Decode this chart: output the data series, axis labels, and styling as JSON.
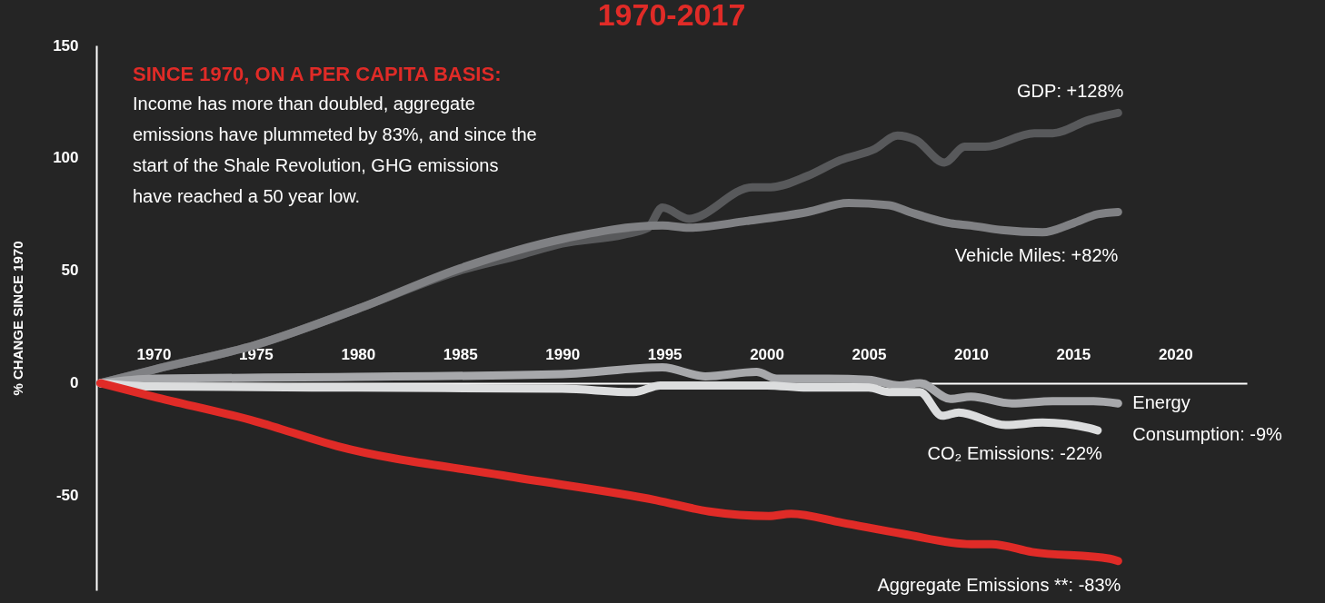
{
  "chart_data": {
    "type": "line",
    "title": "1970-2017",
    "ylabel": "% CHANGE SINCE 1970",
    "xlim": [
      1967.2,
      2023.5
    ],
    "xticks": [
      1970,
      1975,
      1980,
      1985,
      1990,
      1995,
      2000,
      2005,
      2010,
      2015,
      2020
    ],
    "ylim": [
      -92,
      150
    ],
    "yticks": [
      -50,
      0,
      50,
      100,
      150
    ],
    "series": [
      {
        "name": "GDP: +128%",
        "color": "#58595b",
        "x": [
          1967.4,
          1970,
          1975,
          1980,
          1985,
          1988,
          1990,
          1993,
          1994.2,
          1994.9,
          1996.2,
          1999.3,
          2000.2,
          2002,
          2003.6,
          2005.3,
          2006.4,
          2007.3,
          2008.7,
          2009.7,
          2010.7,
          2013.1,
          2014,
          2015.8,
          2017.2
        ],
        "values": [
          0,
          6,
          17,
          33,
          50,
          57,
          62,
          66,
          69,
          78,
          73,
          87,
          87,
          92,
          99,
          104,
          110,
          108,
          98,
          105,
          105,
          111,
          111,
          117,
          120
        ]
      },
      {
        "name": "Vehicle Miles: +82%",
        "color": "#808184",
        "x": [
          1967.4,
          1970,
          1975,
          1980,
          1985,
          1990,
          1994.9,
          1996.2,
          1999,
          2002,
          2004,
          2006,
          2007,
          2009,
          2010,
          2011.5,
          2013.5,
          2015,
          2016.2,
          2017.2
        ],
        "values": [
          0,
          6,
          17,
          33,
          51,
          64,
          70,
          69,
          72,
          76,
          80,
          79,
          76,
          71,
          70,
          68,
          67,
          71,
          75,
          76
        ]
      },
      {
        "name": "Energy Consumption: -9%",
        "color": "#a7a8ab",
        "x": [
          1967.4,
          1970,
          1979,
          1990,
          1994.9,
          1997,
          1999.5,
          2000.5,
          2003,
          2005,
          2006.5,
          2007.5,
          2009,
          2010,
          2012,
          2014,
          2016,
          2017.2
        ],
        "values": [
          0,
          2,
          2.7,
          4,
          7,
          3,
          5,
          2,
          2,
          1.5,
          -1,
          0,
          -7,
          -6,
          -9,
          -8,
          -8,
          -9
        ]
      },
      {
        "name": "CO₂ Emissions: -22%",
        "color": "#dcddde",
        "x": [
          1967.4,
          1970,
          1980,
          1990,
          1993.5,
          1994.8,
          2000,
          2002,
          2005,
          2006,
          2007.5,
          2008.6,
          2009.4,
          2011.7,
          2013.5,
          2015.8,
          2016.2
        ],
        "values": [
          0,
          -1.5,
          -2,
          -2.5,
          -4,
          -1,
          -1,
          -2,
          -2,
          -4,
          -4,
          -14.5,
          -13,
          -18.6,
          -17.5,
          -20,
          -21
        ]
      },
      {
        "name": "Aggregate Emissions **: -83%",
        "color": "#e02b27",
        "x": [
          1967.4,
          1970,
          1975,
          1979,
          1987.1,
          1994.6,
          1997.2,
          2000.1,
          2001.2,
          2003.7,
          2006.7,
          2010,
          2011,
          2013,
          2016.8,
          2017.2
        ],
        "values": [
          0,
          -6,
          -17,
          -28,
          -41,
          -52,
          -57,
          -59,
          -58,
          -62,
          -67,
          -71.5,
          -71.5,
          -75,
          -78,
          -79
        ]
      }
    ],
    "line_style": "solid",
    "annotations": [
      "SINCE 1970, ON A PER CAPITA BASIS:",
      "Income has more than doubled, aggregate emissions have plummeted by 83%, and since the start of the Shale Revolution, GHG emissions have reached a 50 year low."
    ]
  }
}
